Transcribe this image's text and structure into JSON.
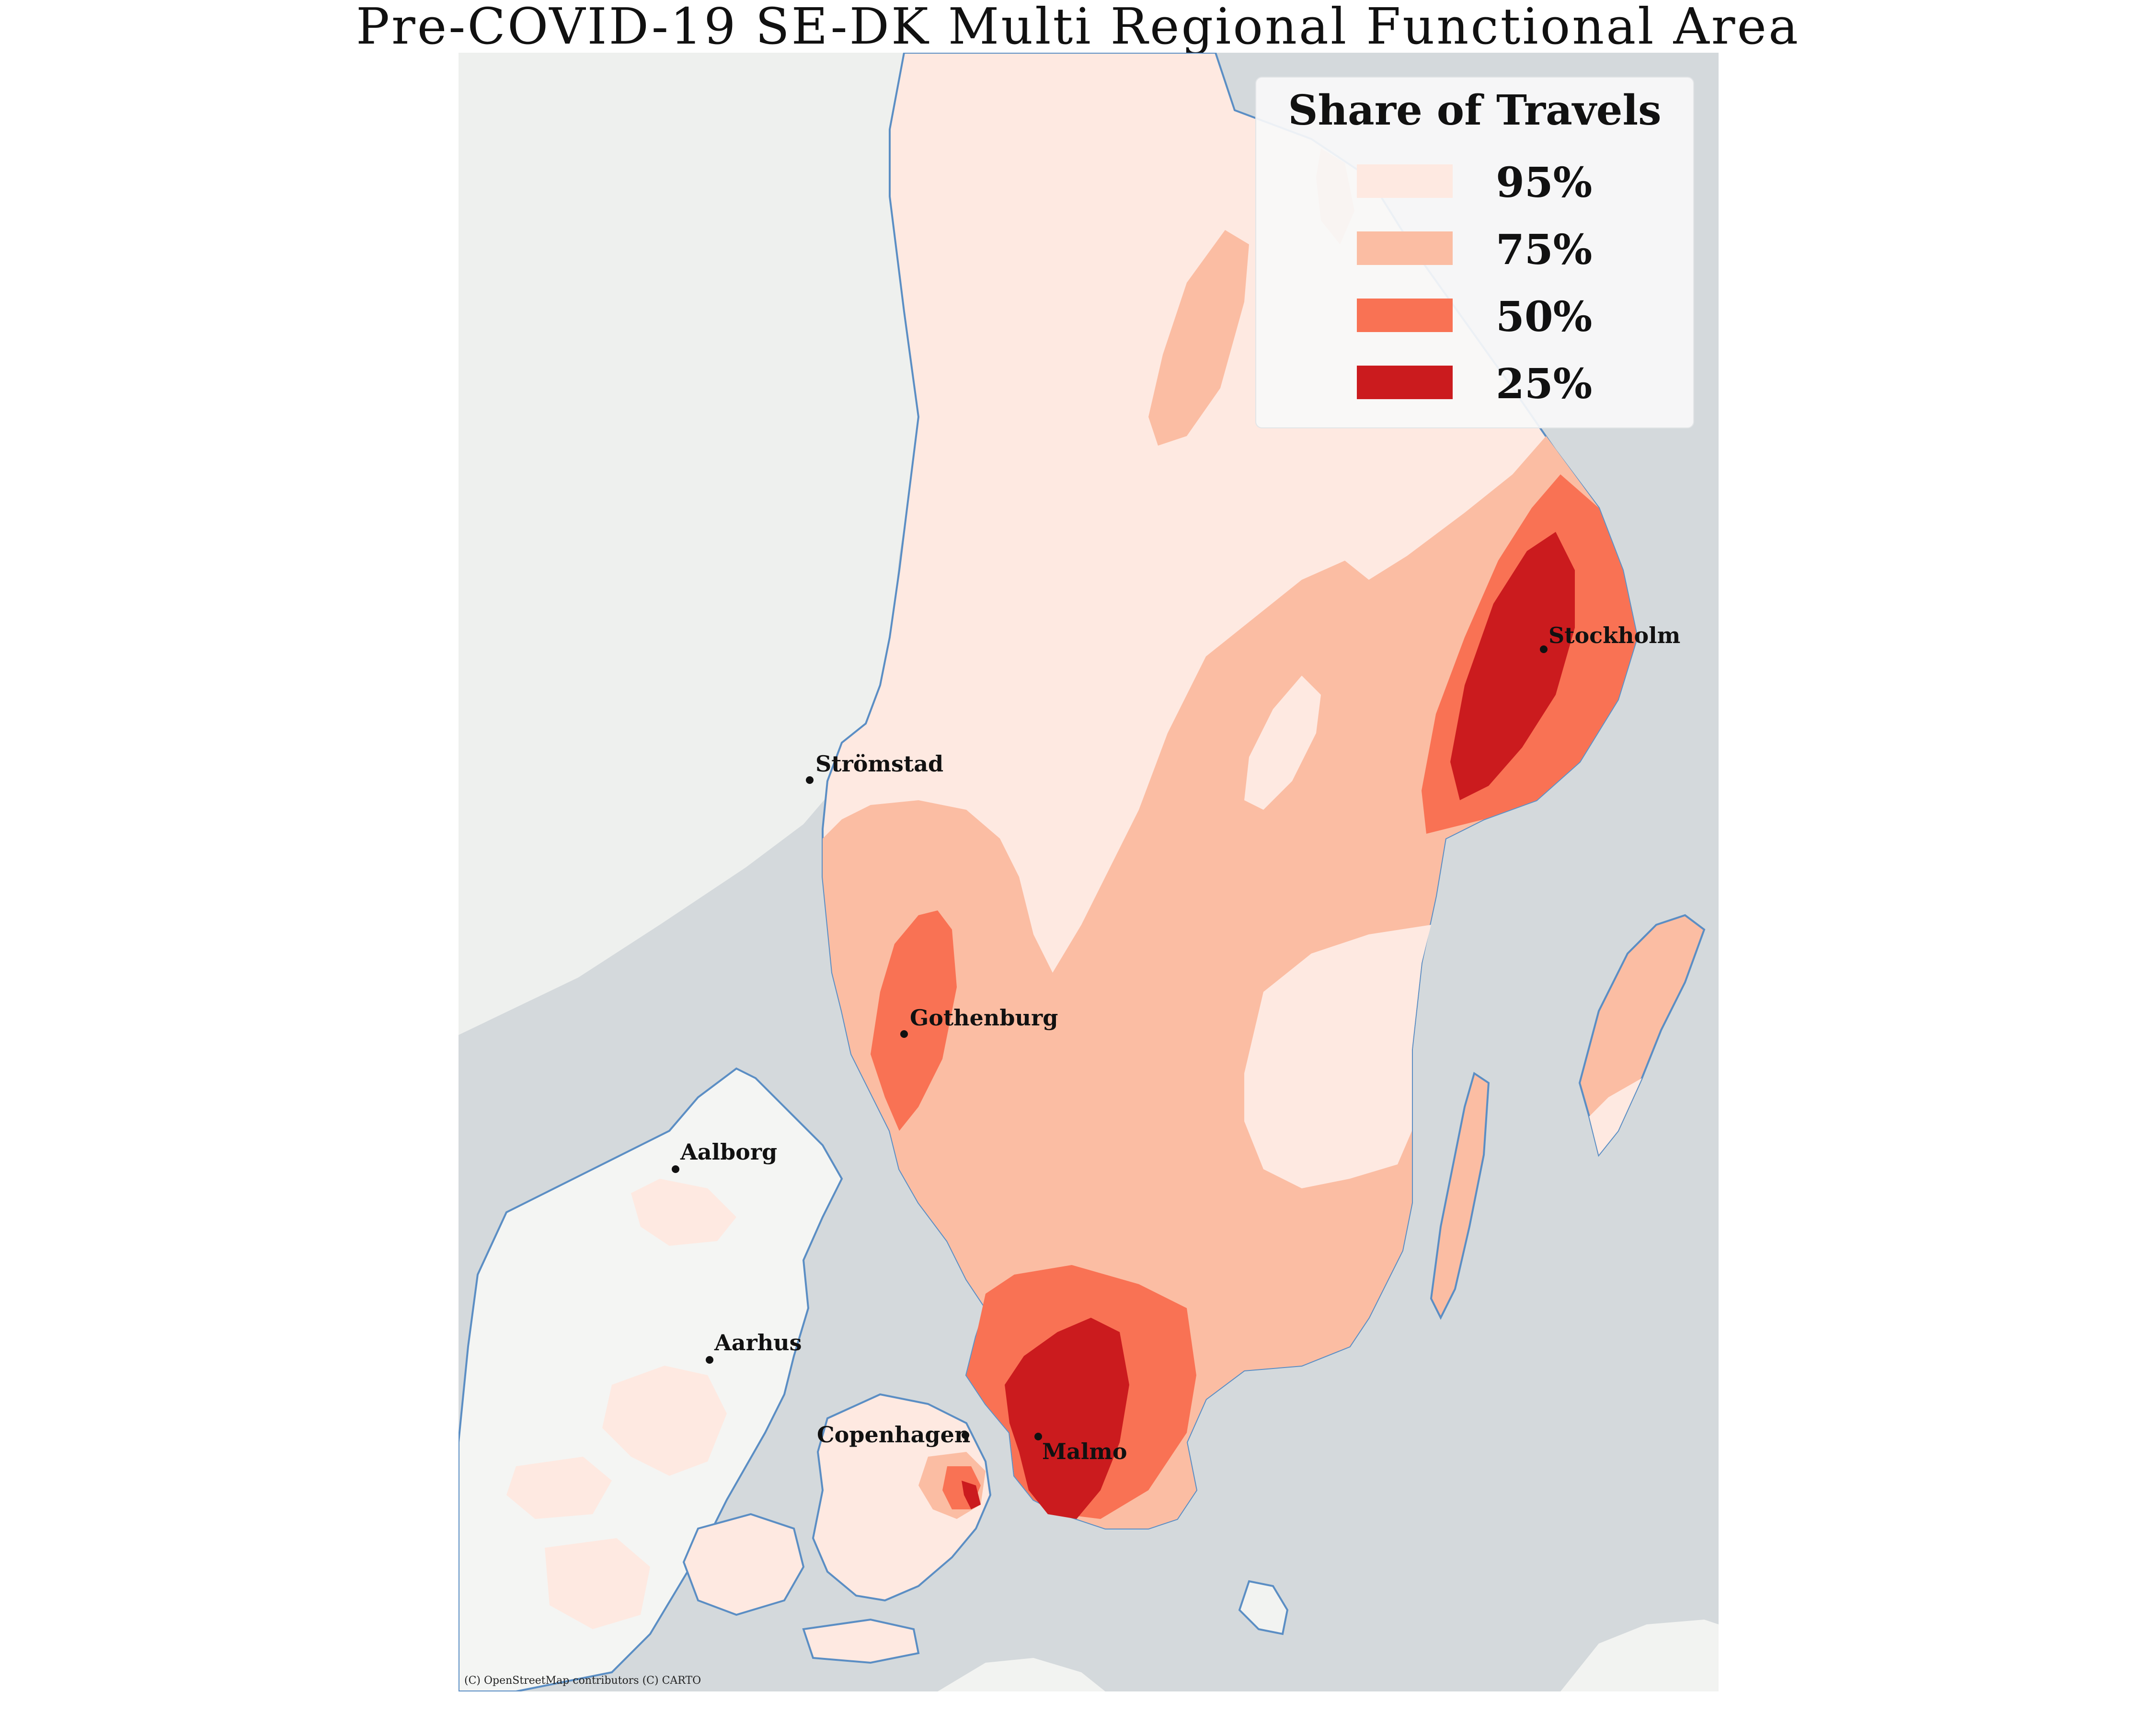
{
  "title": "Pre-COVID-19 SE-DK Multi Regional Functional Area",
  "legend": {
    "title": "Share of Travels",
    "items": [
      {
        "label": "95%",
        "color": "#fee9e1"
      },
      {
        "label": "75%",
        "color": "#fbbda3"
      },
      {
        "label": "50%",
        "color": "#f97254"
      },
      {
        "label": "25%",
        "color": "#cb1b1e"
      }
    ]
  },
  "cities": [
    {
      "name": "Stockholm",
      "label": "Stockholm"
    },
    {
      "name": "Strömstad",
      "label": "Strömstad"
    },
    {
      "name": "Gothenburg",
      "label": "Gothenburg"
    },
    {
      "name": "Aalborg",
      "label": "Aalborg"
    },
    {
      "name": "Aarhus",
      "label": "Aarhus"
    },
    {
      "name": "Copenhagen",
      "label": "Copenhagen"
    },
    {
      "name": "Malmo",
      "label": "Malmo"
    }
  ],
  "attribution": "(C) OpenStreetMap contributors (C) CARTO",
  "colors": {
    "water": "#d4d9dc",
    "land": "#f2f3f1",
    "coast": "#5b8ec4"
  }
}
